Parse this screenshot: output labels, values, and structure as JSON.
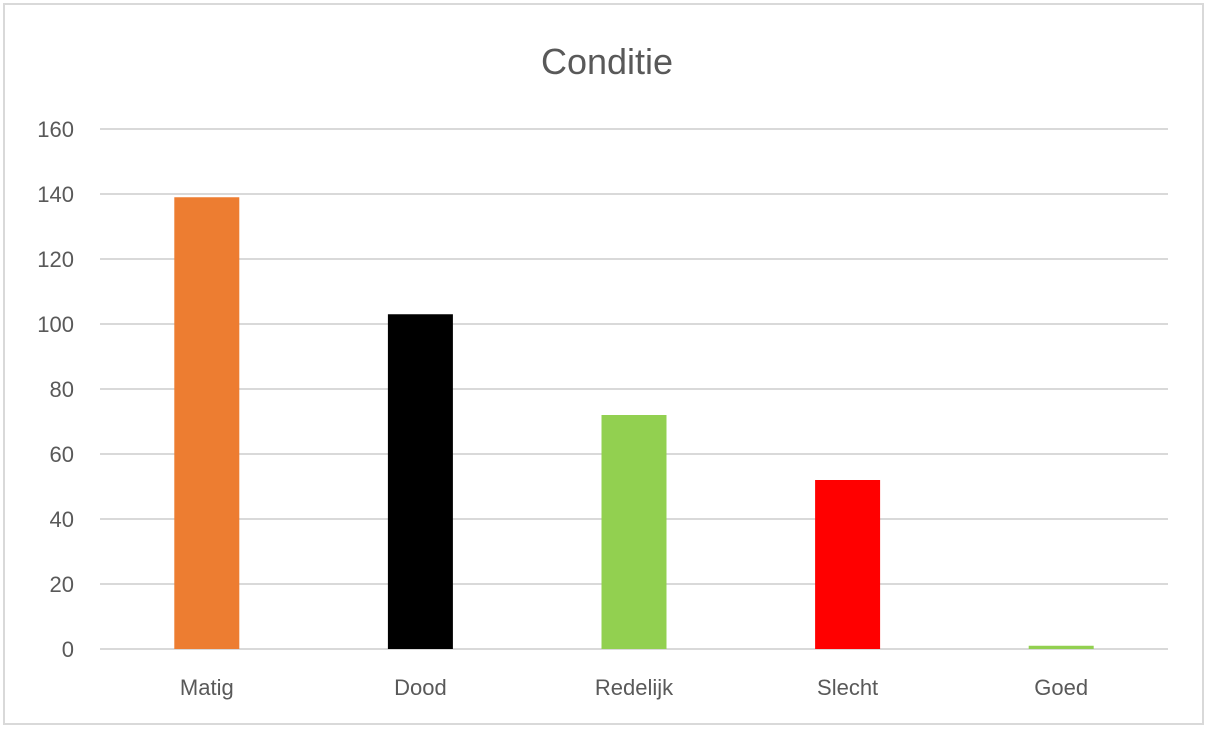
{
  "chart_data": {
    "type": "bar",
    "title": "Conditie",
    "categories": [
      "Matig",
      "Dood",
      "Redelijk",
      "Slecht",
      "Goed"
    ],
    "values": [
      139,
      103,
      72,
      52,
      1
    ],
    "colors": [
      "#ed7d31",
      "#000000",
      "#92d050",
      "#ff0000",
      "#92d050"
    ],
    "ylim": [
      0,
      160
    ],
    "yticks": [
      "0",
      "20",
      "40",
      "60",
      "80",
      "100",
      "120",
      "140",
      "160"
    ],
    "grid": true,
    "legend": "none"
  }
}
